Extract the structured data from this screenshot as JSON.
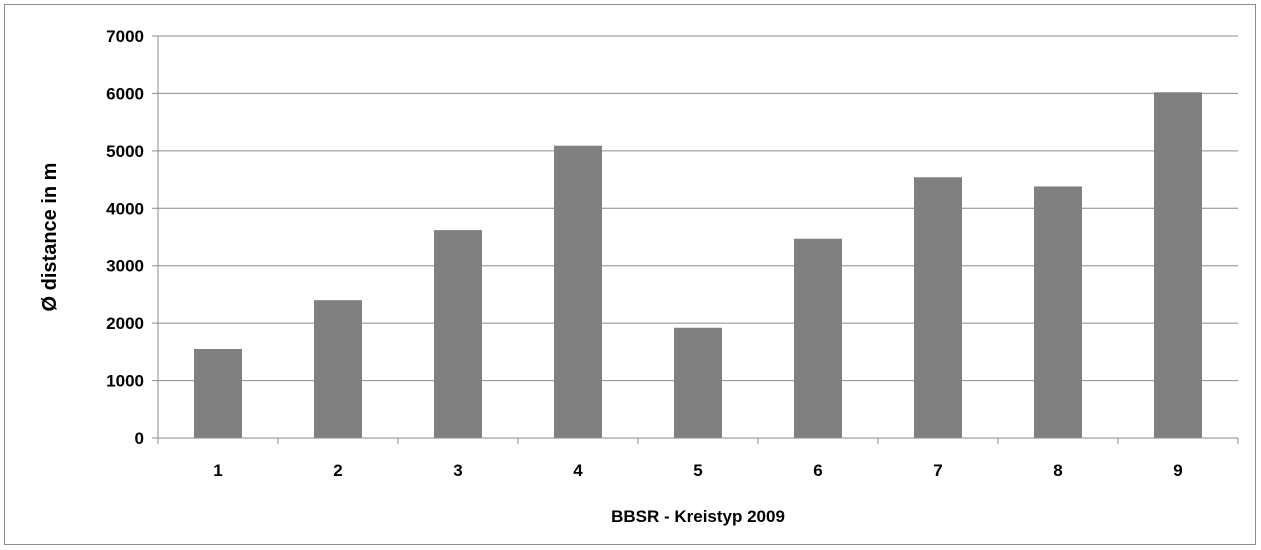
{
  "chart_data": {
    "type": "bar",
    "categories": [
      "1",
      "2",
      "3",
      "4",
      "5",
      "6",
      "7",
      "8",
      "9"
    ],
    "values": [
      1550,
      2400,
      3620,
      5090,
      1920,
      3470,
      4540,
      4380,
      6020
    ],
    "title": "",
    "xlabel": "BBSR - Kreistyp 2009",
    "ylabel": "Ø distance in m",
    "ylim": [
      0,
      7000
    ],
    "yticks": [
      0,
      1000,
      2000,
      3000,
      4000,
      5000,
      6000,
      7000
    ],
    "grid": true,
    "legend": "none",
    "colors": {
      "bar": "#808080",
      "grid": "#8c8c8c",
      "axis": "#8c8c8c",
      "text": "#000000"
    }
  }
}
